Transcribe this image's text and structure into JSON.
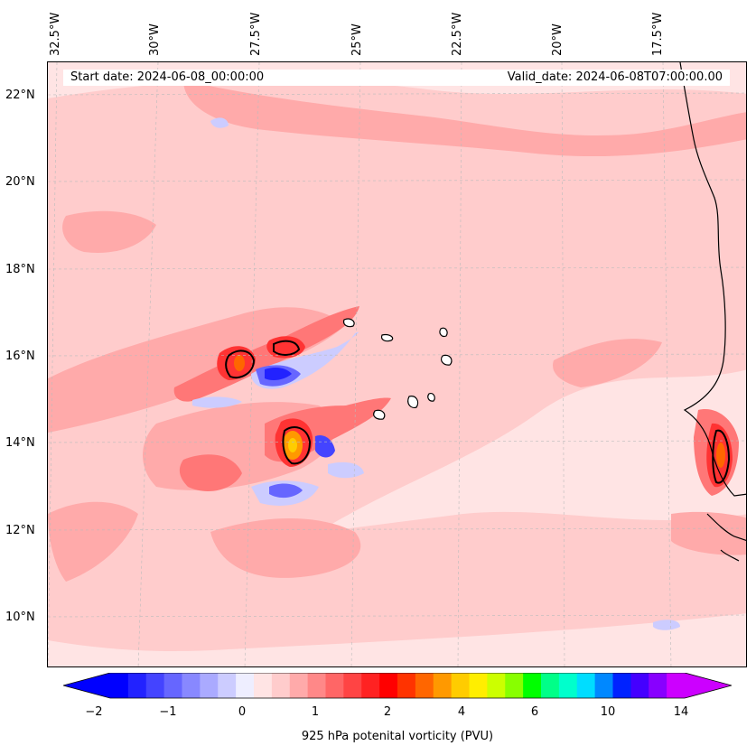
{
  "header": {
    "start_date": "Start date: 2024-06-08_00:00:00",
    "valid_date": "Valid_date: 2024-06-08T07:00:00.00"
  },
  "axes": {
    "longitude_labels": [
      "32.5°W",
      "30°W",
      "27.5°W",
      "25°W",
      "22.5°W",
      "20°W",
      "17.5°W"
    ],
    "latitude_labels": [
      "22°N",
      "20°N",
      "18°N",
      "16°N",
      "14°N",
      "12°N",
      "10°N"
    ],
    "gridlines": true
  },
  "colorbar": {
    "label": "925 hPa potenital vorticity (PVU)",
    "tick_labels": [
      "−2",
      "−1",
      "0",
      "1",
      "2",
      "4",
      "6",
      "10",
      "14"
    ],
    "extend": "both",
    "colors": [
      "#0000ff",
      "#2222ff",
      "#4444ff",
      "#6666ff",
      "#8888ff",
      "#aaaaff",
      "#ccccff",
      "#eeeeff",
      "#ffe4e4",
      "#ffcccc",
      "#ffaaaa",
      "#ff8888",
      "#ff6666",
      "#ff4444",
      "#ff2222",
      "#ff0000",
      "#ff3300",
      "#ff6600",
      "#ff9900",
      "#ffcc00",
      "#ffee00",
      "#ccff00",
      "#88ff00",
      "#00ff00",
      "#00ff88",
      "#00ffcc",
      "#00ddff",
      "#0088ff",
      "#0022ff",
      "#4400ff",
      "#8800ff",
      "#cc00ff"
    ],
    "under_color": "#0000ff",
    "over_color": "#cc00ff"
  },
  "map": {
    "background_color": "#ffe4e4",
    "field_colors": {
      "light": "#ffcccc",
      "medium": "#ffaaaa",
      "strong": "#ff7777",
      "very_strong": "#ff3333",
      "peak": "#ff9900",
      "negative_light": "#ccccff",
      "negative": "#6666ff",
      "negative_strong": "#2222ff"
    },
    "coastline_color": "#000000"
  }
}
